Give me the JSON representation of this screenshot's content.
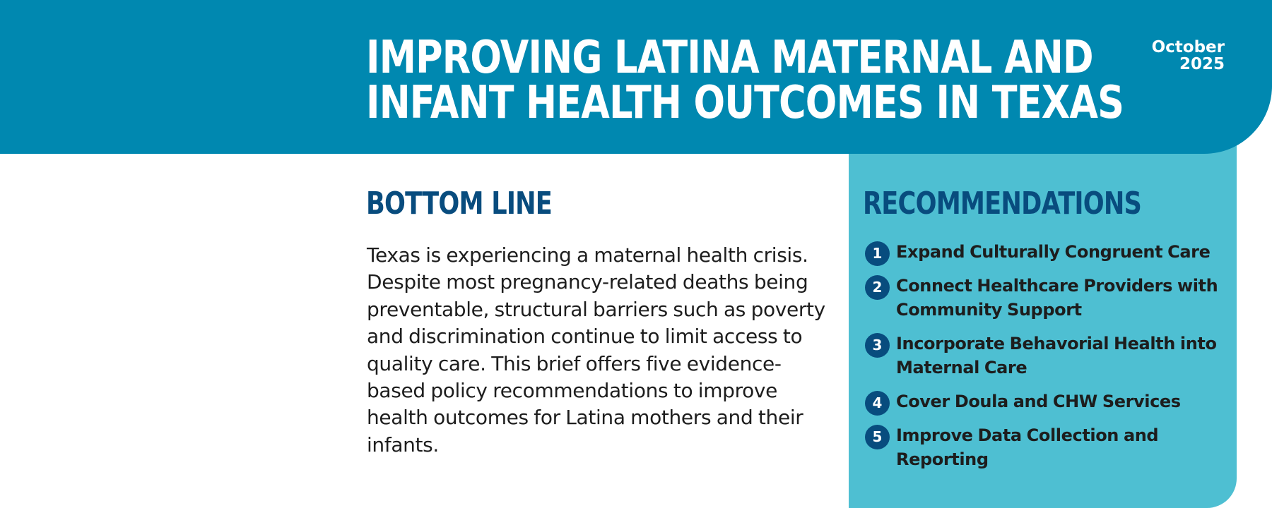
{
  "header": {
    "title_line1": "IMPROVING LATINA MATERNAL AND",
    "title_line2": "INFANT HEALTH OUTCOMES IN TEXAS",
    "date_month": "October",
    "date_year": "2025"
  },
  "bottom_line": {
    "heading": "BOTTOM LINE",
    "body": "Texas is experiencing a maternal health crisis. Despite most pregnancy-related deaths being preventable, structural barriers such as poverty and discrimination continue to limit access to quality care. This brief offers five evidence-based policy recommendations to improve health outcomes for Latina mothers and their infants."
  },
  "recommendations": {
    "heading": "RECOMMENDATIONS",
    "items": [
      {
        "number": "1",
        "text": "Expand Culturally Congruent Care"
      },
      {
        "number": "2",
        "text": "Connect Healthcare Providers with Community Support"
      },
      {
        "number": "3",
        "text": "Incorporate Behavorial Health into Maternal Care"
      },
      {
        "number": "4",
        "text": "Cover Doula and CHW Services"
      },
      {
        "number": "5",
        "text": "Improve Data Collection and Reporting"
      }
    ]
  },
  "colors": {
    "header_band": "#0088b0",
    "recommendations_panel": "#4ebfd2",
    "heading_navy": "#084c7e",
    "body_text": "#1d1d1d"
  }
}
